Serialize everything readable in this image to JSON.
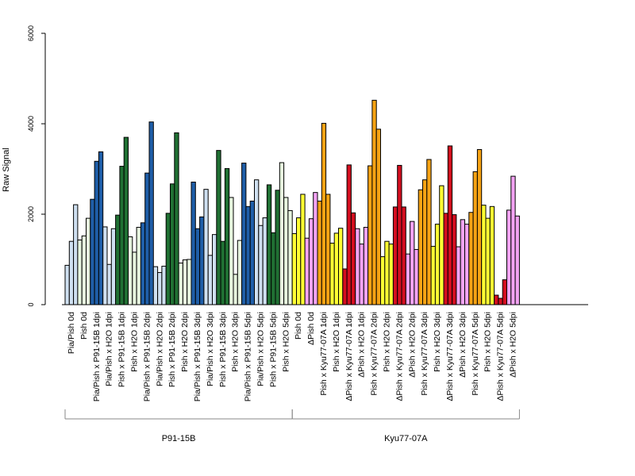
{
  "chart_data": {
    "type": "bar",
    "title": "",
    "xlabel": "",
    "ylabel": "Raw Signal",
    "ylim": [
      0,
      6000
    ],
    "yticks": [
      0,
      2000,
      4000,
      6000
    ],
    "grid": false,
    "legend": "none",
    "colors": {
      "lightblue": "#cfe0f1",
      "darkblue": "#1f5ea8",
      "lightgreen": "#e7f5df",
      "darkgreen": "#207033",
      "yellow": "#ffff33",
      "pink": "#f3a3f3",
      "orange": "#f6a314",
      "red": "#d40e1f"
    },
    "groups": [
      {
        "name": "P91-15B",
        "categories": [
          {
            "label": "Pia/Pish 0d",
            "color": "lightblue",
            "values": [
              870,
              1400,
              2210
            ]
          },
          {
            "label": "Pish 0d",
            "color": "lightgreen",
            "values": [
              1430,
              1520,
              1910
            ]
          },
          {
            "label": "Pia/Pish x P91-15B 1dpi",
            "color": "darkblue",
            "values": [
              2330,
              3170,
              3380
            ]
          },
          {
            "label": "Pia/Pish x H2O 1dpi",
            "color": "lightblue",
            "values": [
              1720,
              890,
              1680
            ]
          },
          {
            "label": "Pish x P91-15B 1dpi",
            "color": "darkgreen",
            "values": [
              1980,
              3060,
              3700
            ]
          },
          {
            "label": "Pish x H2O 1dpi",
            "color": "lightgreen",
            "values": [
              1500,
              1160,
              1710
            ]
          },
          {
            "label": "Pia/Pish x P91-15B 2dpi",
            "color": "darkblue",
            "values": [
              1810,
              2910,
              4040
            ]
          },
          {
            "label": "Pia/Pish x H2O 2dpi",
            "color": "lightblue",
            "values": [
              840,
              710,
              850
            ]
          },
          {
            "label": "Pish x P91-15B 2dpi",
            "color": "darkgreen",
            "values": [
              2020,
              2670,
              3800
            ]
          },
          {
            "label": "Pish x H2O 2dpi",
            "color": "lightgreen",
            "values": [
              920,
              990,
              1000
            ]
          },
          {
            "label": "Pia/Pish x P91-15B 3dpi",
            "color": "darkblue",
            "values": [
              2710,
              1680,
              1940
            ]
          },
          {
            "label": "Pia/Pish x H2O 3dpi",
            "color": "lightblue",
            "values": [
              2550,
              1090,
              1550
            ]
          },
          {
            "label": "Pish x P91-15B 3dpi",
            "color": "darkgreen",
            "values": [
              3410,
              1400,
              3010
            ]
          },
          {
            "label": "Pish x H2O 3dpi",
            "color": "lightgreen",
            "values": [
              2370,
              670,
              1420
            ]
          },
          {
            "label": "Pia/Pish x P91-15B 5dpi",
            "color": "darkblue",
            "values": [
              3130,
              2170,
              2290
            ]
          },
          {
            "label": "Pia/Pish x H2O 5dpi",
            "color": "lightblue",
            "values": [
              2760,
              1750,
              1920
            ]
          },
          {
            "label": "Pish x P91-15B 5dpi",
            "color": "darkgreen",
            "values": [
              2650,
              1590,
              2530
            ]
          },
          {
            "label": "Pish x H2O 5dpi",
            "color": "lightgreen",
            "values": [
              3140,
              2370,
              2080
            ]
          }
        ]
      },
      {
        "name": "Kyu77-07A",
        "categories": [
          {
            "label": "Pish 0d",
            "color": "yellow",
            "values": [
              1570,
              1920,
              2440
            ]
          },
          {
            "label": "ΔPish 0d",
            "color": "pink",
            "values": [
              1470,
              1900,
              2480
            ]
          },
          {
            "label": "Pish x Kyu77-07A 1dpi",
            "color": "orange",
            "values": [
              2290,
              4010,
              2440
            ]
          },
          {
            "label": "Pish x H2O 1dpi",
            "color": "yellow",
            "values": [
              1360,
              1580,
              1690
            ]
          },
          {
            "label": "ΔPish x Kyu77-07A 1dpi",
            "color": "red",
            "values": [
              790,
              3090,
              2030
            ]
          },
          {
            "label": "ΔPish x H2O 1dpi",
            "color": "pink",
            "values": [
              1680,
              1340,
              1710
            ]
          },
          {
            "label": "Pish x Kyu77-07A 2dpi",
            "color": "orange",
            "values": [
              3070,
              4520,
              3880
            ]
          },
          {
            "label": "Pish x H2O 2dpi",
            "color": "yellow",
            "values": [
              1060,
              1400,
              1340
            ]
          },
          {
            "label": "ΔPish x Kyu77-07A 2dpi",
            "color": "red",
            "values": [
              2160,
              3080,
              2160
            ]
          },
          {
            "label": "ΔPish x H2O 2dpi",
            "color": "pink",
            "values": [
              1120,
              1840,
              1220
            ]
          },
          {
            "label": "Pish x Kyu77-07A 3dpi",
            "color": "orange",
            "values": [
              2540,
              2760,
              3210
            ]
          },
          {
            "label": "Pish x H2O 3dpi",
            "color": "yellow",
            "values": [
              1290,
              1780,
              2630
            ]
          },
          {
            "label": "ΔPish x Kyu77-07A 3dpi",
            "color": "red",
            "values": [
              2020,
              3510,
              1990
            ]
          },
          {
            "label": "ΔPish x H2O 3dpi",
            "color": "pink",
            "values": [
              1280,
              1880,
              1780
            ]
          },
          {
            "label": "Pish x Kyu77-07A 5dpi",
            "color": "orange",
            "values": [
              2040,
              2940,
              3430
            ]
          },
          {
            "label": "Pish x H2O 5dpi",
            "color": "yellow",
            "values": [
              2200,
              1910,
              2170
            ]
          },
          {
            "label": "ΔPish x Kyu77-07A 5dpi",
            "color": "red",
            "values": [
              210,
              140,
              550
            ]
          },
          {
            "label": "ΔPish x H2O 5dpi",
            "color": "pink",
            "values": [
              2090,
              2840,
              1960
            ]
          }
        ]
      }
    ]
  }
}
